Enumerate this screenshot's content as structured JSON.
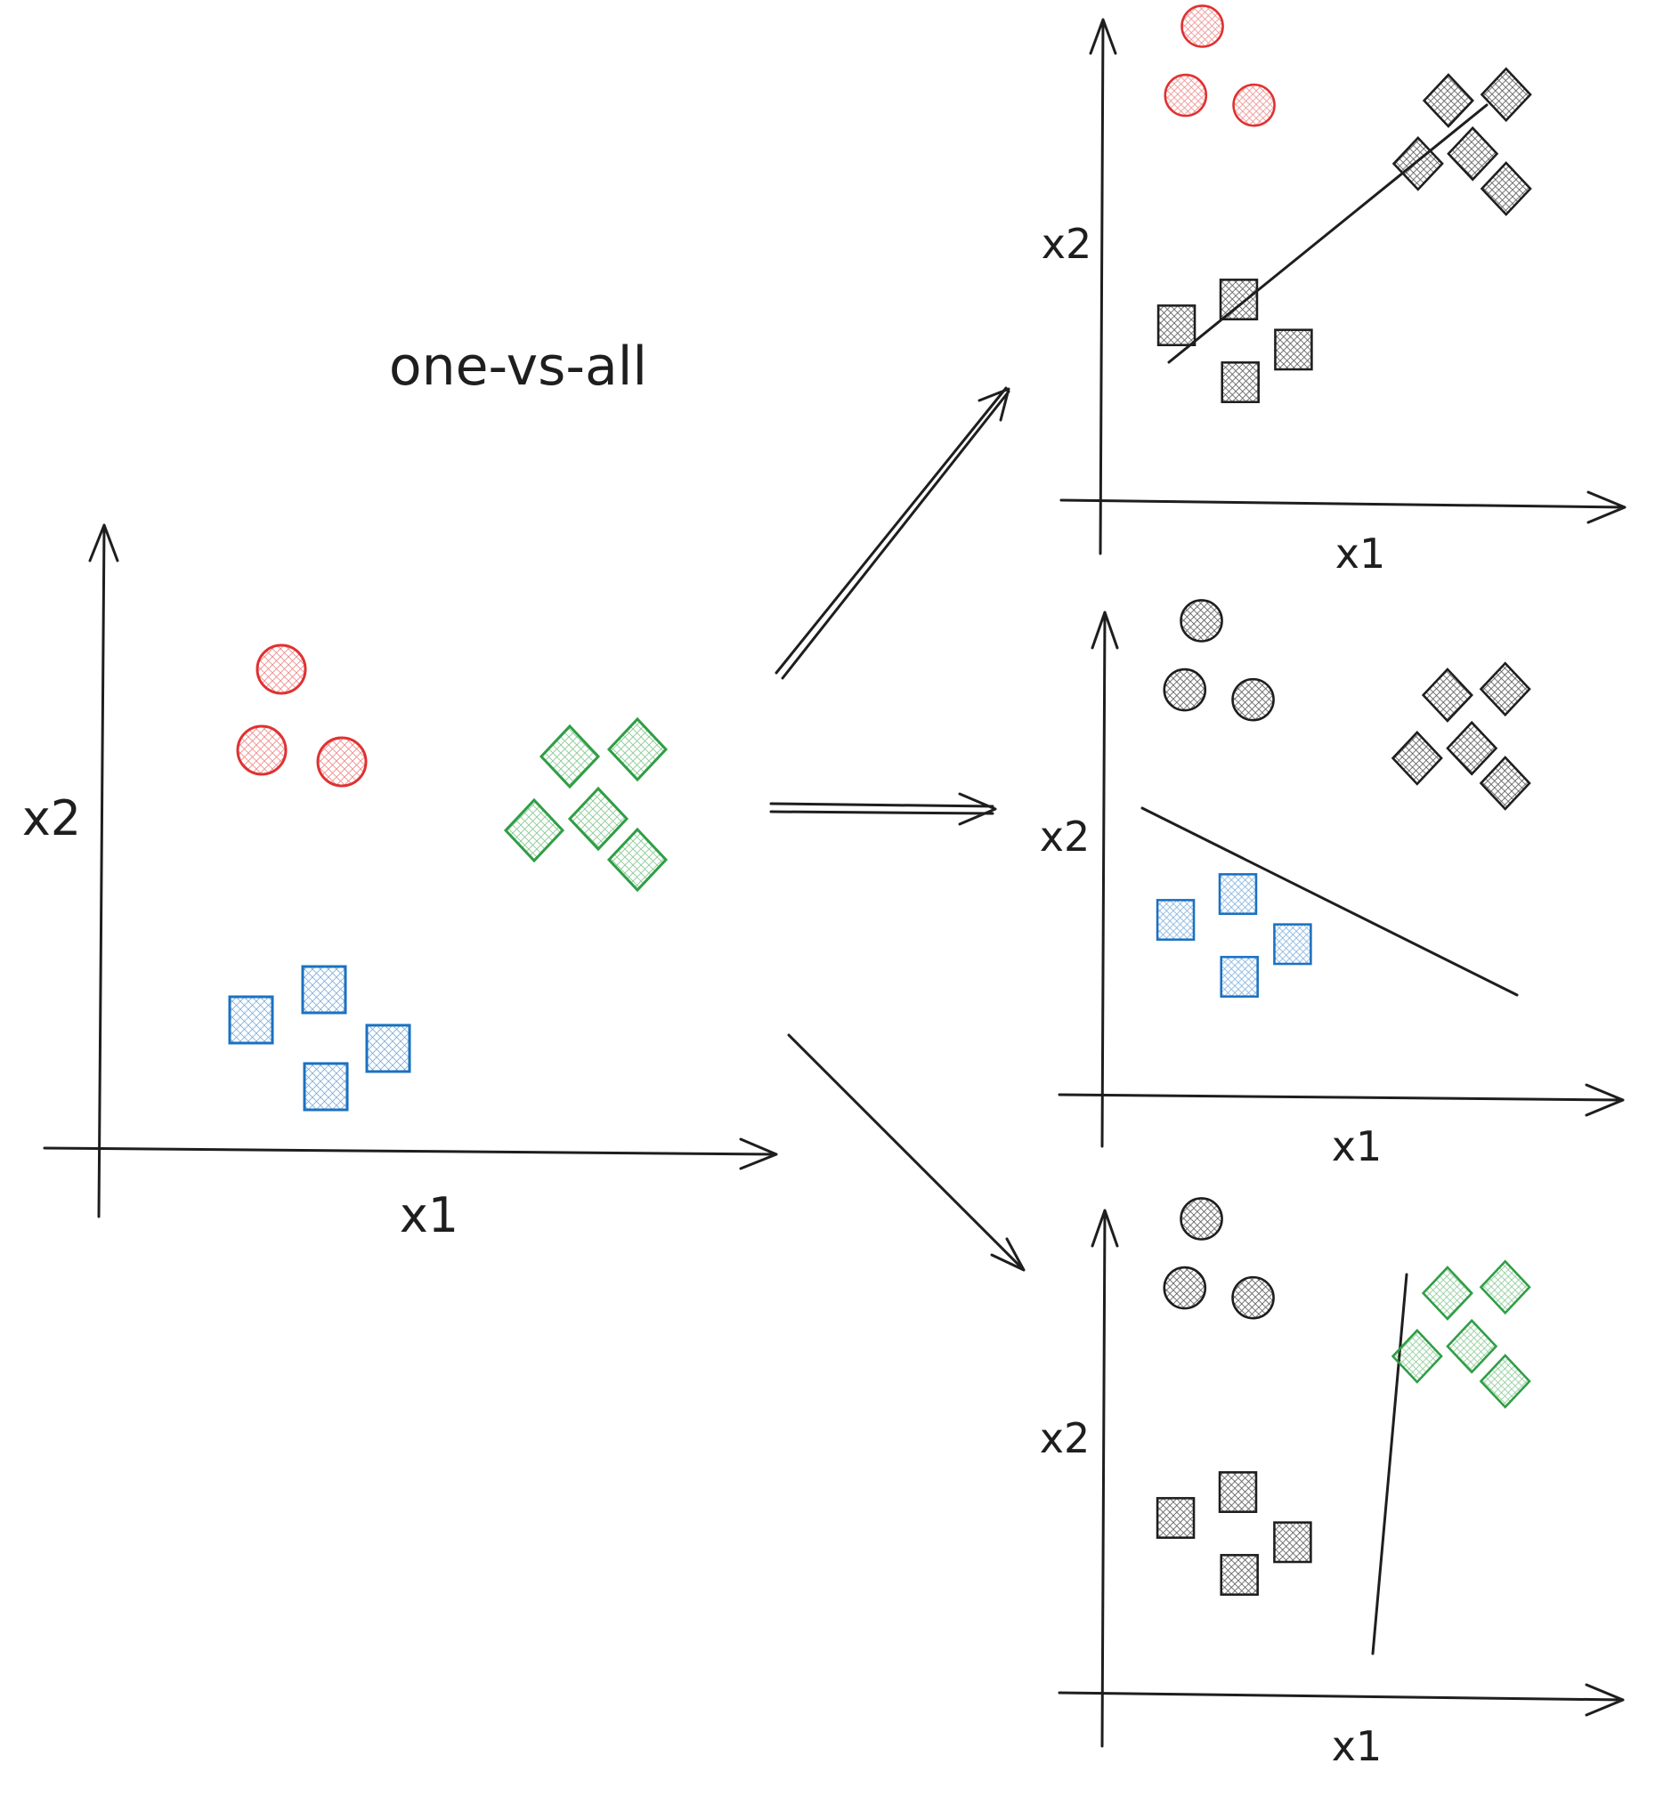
{
  "title": "one-vs-all",
  "colors": {
    "red": "#e03131",
    "blue": "#1971c2",
    "green": "#2f9e44",
    "black": "#1e1e1e"
  },
  "panels": [
    {
      "id": "original",
      "x_label": "x1",
      "y_label": "x2",
      "classes": {
        "circle": "red",
        "square": "blue",
        "diamond": "green"
      }
    },
    {
      "id": "circle-vs-rest",
      "x_label": "x1",
      "y_label": "x2",
      "classes": {
        "circle": "red",
        "square": "black",
        "diamond": "black"
      }
    },
    {
      "id": "square-vs-rest",
      "x_label": "x1",
      "y_label": "x2",
      "classes": {
        "circle": "black",
        "square": "blue",
        "diamond": "black"
      }
    },
    {
      "id": "diamond-vs-rest",
      "x_label": "x1",
      "y_label": "x2",
      "classes": {
        "circle": "black",
        "square": "black",
        "diamond": "green"
      }
    }
  ]
}
